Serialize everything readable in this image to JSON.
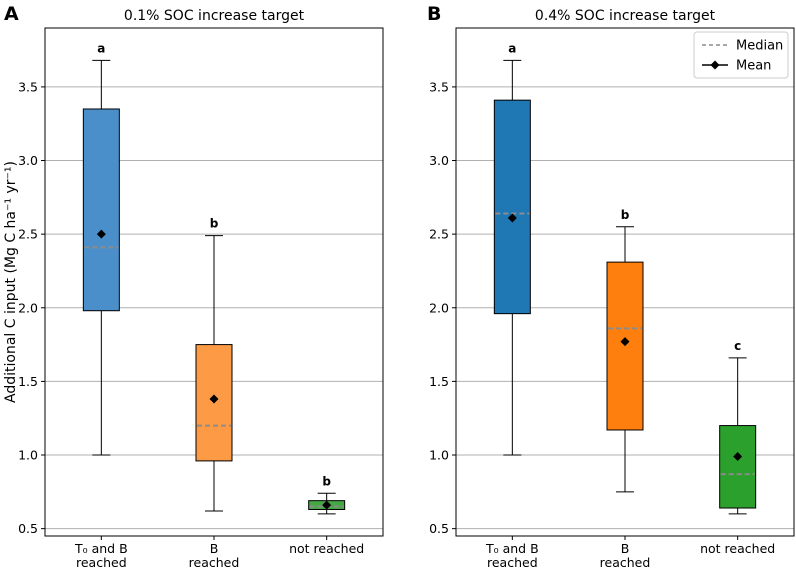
{
  "chart_data": [
    {
      "type": "box",
      "panel_label": "A",
      "title": "0.1% SOC increase target",
      "ylabel": "Additional C input (Mg C ha⁻¹ yr⁻¹)",
      "ylim": [
        0.45,
        3.9
      ],
      "yticks": [
        "0.5",
        "1.0",
        "1.5",
        "2.0",
        "2.5",
        "3.0",
        "3.5"
      ],
      "ytick_values": [
        0.5,
        1.0,
        1.5,
        2.0,
        2.5,
        3.0,
        3.5
      ],
      "grid": true,
      "categories": [
        {
          "line1": "T₀ and B",
          "line2": "reached"
        },
        {
          "line1": "B",
          "line2": "reached"
        },
        {
          "line1": "not reached",
          "line2": ""
        }
      ],
      "boxes": [
        {
          "whisker_low": 1.0,
          "q1": 1.98,
          "median": 2.41,
          "q3": 3.35,
          "whisker_high": 3.68,
          "mean": 2.5,
          "color": "#4a8fca",
          "letter": "a"
        },
        {
          "whisker_low": 0.62,
          "q1": 0.96,
          "median": 1.2,
          "q3": 1.75,
          "whisker_high": 2.49,
          "mean": 1.38,
          "color": "#fd9a46",
          "letter": "b"
        },
        {
          "whisker_low": 0.6,
          "q1": 0.63,
          "median": 0.65,
          "q3": 0.69,
          "whisker_high": 0.74,
          "mean": 0.66,
          "color": "#44a944",
          "letter": "b"
        }
      ],
      "legend": null
    },
    {
      "type": "box",
      "panel_label": "B",
      "title": "0.4% SOC increase target",
      "ylabel": "",
      "ylim": [
        0.45,
        3.9
      ],
      "yticks": [
        "0.5",
        "1.0",
        "1.5",
        "2.0",
        "2.5",
        "3.0",
        "3.5"
      ],
      "ytick_values": [
        0.5,
        1.0,
        1.5,
        2.0,
        2.5,
        3.0,
        3.5
      ],
      "grid": true,
      "categories": [
        {
          "line1": "T₀ and B",
          "line2": "reached"
        },
        {
          "line1": "B",
          "line2": "reached"
        },
        {
          "line1": "not reached",
          "line2": ""
        }
      ],
      "boxes": [
        {
          "whisker_low": 1.0,
          "q1": 1.96,
          "median": 2.64,
          "q3": 3.41,
          "whisker_high": 3.68,
          "mean": 2.61,
          "color": "#1f77b4",
          "letter": "a"
        },
        {
          "whisker_low": 0.75,
          "q1": 1.17,
          "median": 1.86,
          "q3": 2.31,
          "whisker_high": 2.55,
          "mean": 1.77,
          "color": "#ff7f0e",
          "letter": "b"
        },
        {
          "whisker_low": 0.6,
          "q1": 0.64,
          "median": 0.87,
          "q3": 1.2,
          "whisker_high": 1.66,
          "mean": 0.99,
          "color": "#2ca02c",
          "letter": "c"
        }
      ],
      "legend": {
        "position": "top-right",
        "median_label": "Median",
        "mean_label": "Mean"
      }
    }
  ]
}
